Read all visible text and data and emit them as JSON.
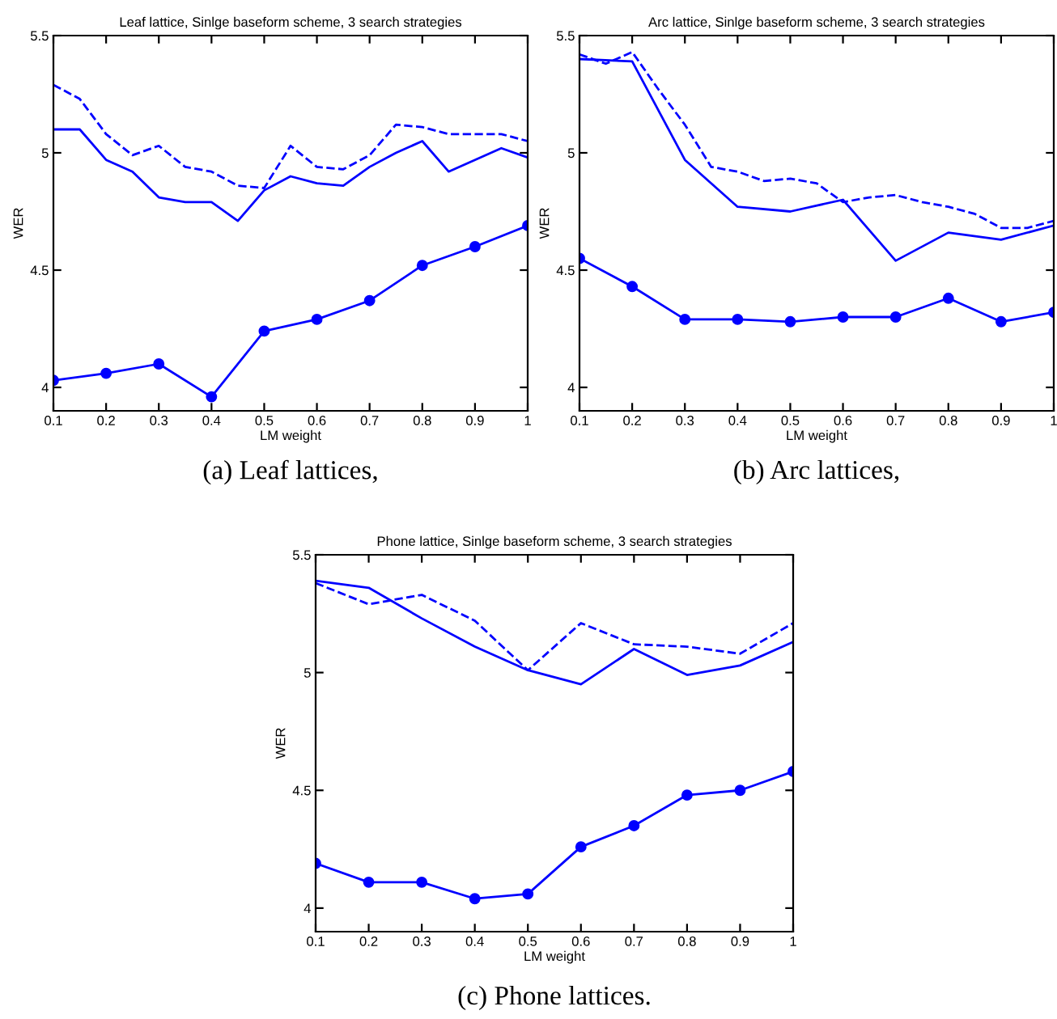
{
  "chart_data": [
    {
      "type": "line",
      "title": "Leaf lattice, Sinlge baseform scheme, 3 search strategies",
      "xlabel": "LM weight",
      "ylabel": "WER",
      "annotations": [
        "(a) Leaf lattices,"
      ],
      "xlim": [
        0.1,
        1
      ],
      "ylim": [
        3.9,
        5.5
      ],
      "xticks": [
        0.1,
        0.2,
        0.3,
        0.4,
        0.5,
        0.6,
        0.7,
        0.8,
        0.9,
        1
      ],
      "yticks": [
        4,
        4.5,
        5,
        5.5
      ],
      "grid": false,
      "legend": false,
      "series": [
        {
          "color": "#0000ff",
          "line_style": "dashed",
          "marker": "none",
          "x": [
            0.1,
            0.15,
            0.2,
            0.25,
            0.3,
            0.35,
            0.4,
            0.45,
            0.5,
            0.55,
            0.6,
            0.65,
            0.7,
            0.75,
            0.8,
            0.85,
            0.9,
            0.95,
            1
          ],
          "values": [
            5.29,
            5.23,
            5.08,
            4.99,
            5.03,
            4.94,
            4.92,
            4.86,
            4.85,
            5.03,
            4.94,
            4.93,
            4.99,
            5.12,
            5.11,
            5.08,
            5.08,
            5.08,
            5.05
          ]
        },
        {
          "color": "#0000ff",
          "line_style": "solid",
          "marker": "none",
          "x": [
            0.1,
            0.15,
            0.2,
            0.25,
            0.3,
            0.35,
            0.4,
            0.45,
            0.5,
            0.55,
            0.6,
            0.65,
            0.7,
            0.75,
            0.8,
            0.85,
            0.9,
            0.95,
            1
          ],
          "values": [
            5.1,
            5.1,
            4.97,
            4.92,
            4.81,
            4.79,
            4.79,
            4.71,
            4.84,
            4.9,
            4.87,
            4.86,
            4.94,
            5.0,
            5.05,
            4.92,
            4.97,
            5.02,
            4.98
          ]
        },
        {
          "color": "#0000ff",
          "line_style": "solid",
          "marker": "circle",
          "x": [
            0.1,
            0.2,
            0.3,
            0.4,
            0.5,
            0.6,
            0.7,
            0.8,
            0.9,
            1
          ],
          "values": [
            4.03,
            4.06,
            4.1,
            3.96,
            4.24,
            4.29,
            4.37,
            4.52,
            4.6,
            4.69
          ]
        }
      ]
    },
    {
      "type": "line",
      "title": "Arc lattice, Sinlge baseform scheme, 3 search strategies",
      "xlabel": "LM weight",
      "ylabel": "WER",
      "annotations": [
        "(b) Arc lattices,"
      ],
      "xlim": [
        0.1,
        1
      ],
      "ylim": [
        3.9,
        5.5
      ],
      "xticks": [
        0.1,
        0.2,
        0.3,
        0.4,
        0.5,
        0.6,
        0.7,
        0.8,
        0.9,
        1
      ],
      "yticks": [
        4,
        4.5,
        5,
        5.5
      ],
      "grid": false,
      "legend": false,
      "series": [
        {
          "color": "#0000ff",
          "line_style": "dashed",
          "marker": "none",
          "x": [
            0.1,
            0.15,
            0.2,
            0.25,
            0.3,
            0.35,
            0.4,
            0.45,
            0.5,
            0.55,
            0.6,
            0.65,
            0.7,
            0.75,
            0.8,
            0.85,
            0.9,
            0.95,
            1
          ],
          "values": [
            5.42,
            5.38,
            5.43,
            5.27,
            5.12,
            4.94,
            4.92,
            4.88,
            4.89,
            4.87,
            4.79,
            4.81,
            4.82,
            4.79,
            4.77,
            4.74,
            4.68,
            4.68,
            4.71
          ]
        },
        {
          "color": "#0000ff",
          "line_style": "solid",
          "marker": "none",
          "x": [
            0.1,
            0.2,
            0.3,
            0.4,
            0.5,
            0.6,
            0.7,
            0.8,
            0.9,
            1
          ],
          "values": [
            5.4,
            5.39,
            4.97,
            4.77,
            4.75,
            4.8,
            4.54,
            4.66,
            4.63,
            4.69
          ]
        },
        {
          "color": "#0000ff",
          "line_style": "solid",
          "marker": "circle",
          "x": [
            0.1,
            0.2,
            0.3,
            0.4,
            0.5,
            0.6,
            0.7,
            0.8,
            0.9,
            1
          ],
          "values": [
            4.55,
            4.43,
            4.29,
            4.29,
            4.28,
            4.3,
            4.3,
            4.38,
            4.28,
            4.32
          ]
        }
      ]
    },
    {
      "type": "line",
      "title": "Phone lattice, Sinlge baseform scheme, 3 search strategies",
      "xlabel": "LM weight",
      "ylabel": "WER",
      "annotations": [
        "(c) Phone lattices."
      ],
      "xlim": [
        0.1,
        1
      ],
      "ylim": [
        3.9,
        5.5
      ],
      "xticks": [
        0.1,
        0.2,
        0.3,
        0.4,
        0.5,
        0.6,
        0.7,
        0.8,
        0.9,
        1
      ],
      "yticks": [
        4,
        4.5,
        5,
        5.5
      ],
      "grid": false,
      "legend": false,
      "series": [
        {
          "color": "#0000ff",
          "line_style": "dashed",
          "marker": "none",
          "x": [
            0.1,
            0.2,
            0.3,
            0.4,
            0.5,
            0.6,
            0.7,
            0.8,
            0.9,
            1
          ],
          "values": [
            5.38,
            5.29,
            5.33,
            5.22,
            5.01,
            5.21,
            5.12,
            5.11,
            5.08,
            5.21
          ]
        },
        {
          "color": "#0000ff",
          "line_style": "solid",
          "marker": "none",
          "x": [
            0.1,
            0.2,
            0.3,
            0.4,
            0.5,
            0.6,
            0.7,
            0.8,
            0.9,
            1
          ],
          "values": [
            5.39,
            5.36,
            5.23,
            5.11,
            5.01,
            4.95,
            5.1,
            4.99,
            5.03,
            5.13
          ]
        },
        {
          "color": "#0000ff",
          "line_style": "solid",
          "marker": "circle",
          "x": [
            0.1,
            0.2,
            0.3,
            0.4,
            0.5,
            0.6,
            0.7,
            0.8,
            0.9,
            1
          ],
          "values": [
            4.19,
            4.11,
            4.11,
            4.04,
            4.06,
            4.26,
            4.35,
            4.48,
            4.5,
            4.58
          ]
        }
      ]
    }
  ]
}
